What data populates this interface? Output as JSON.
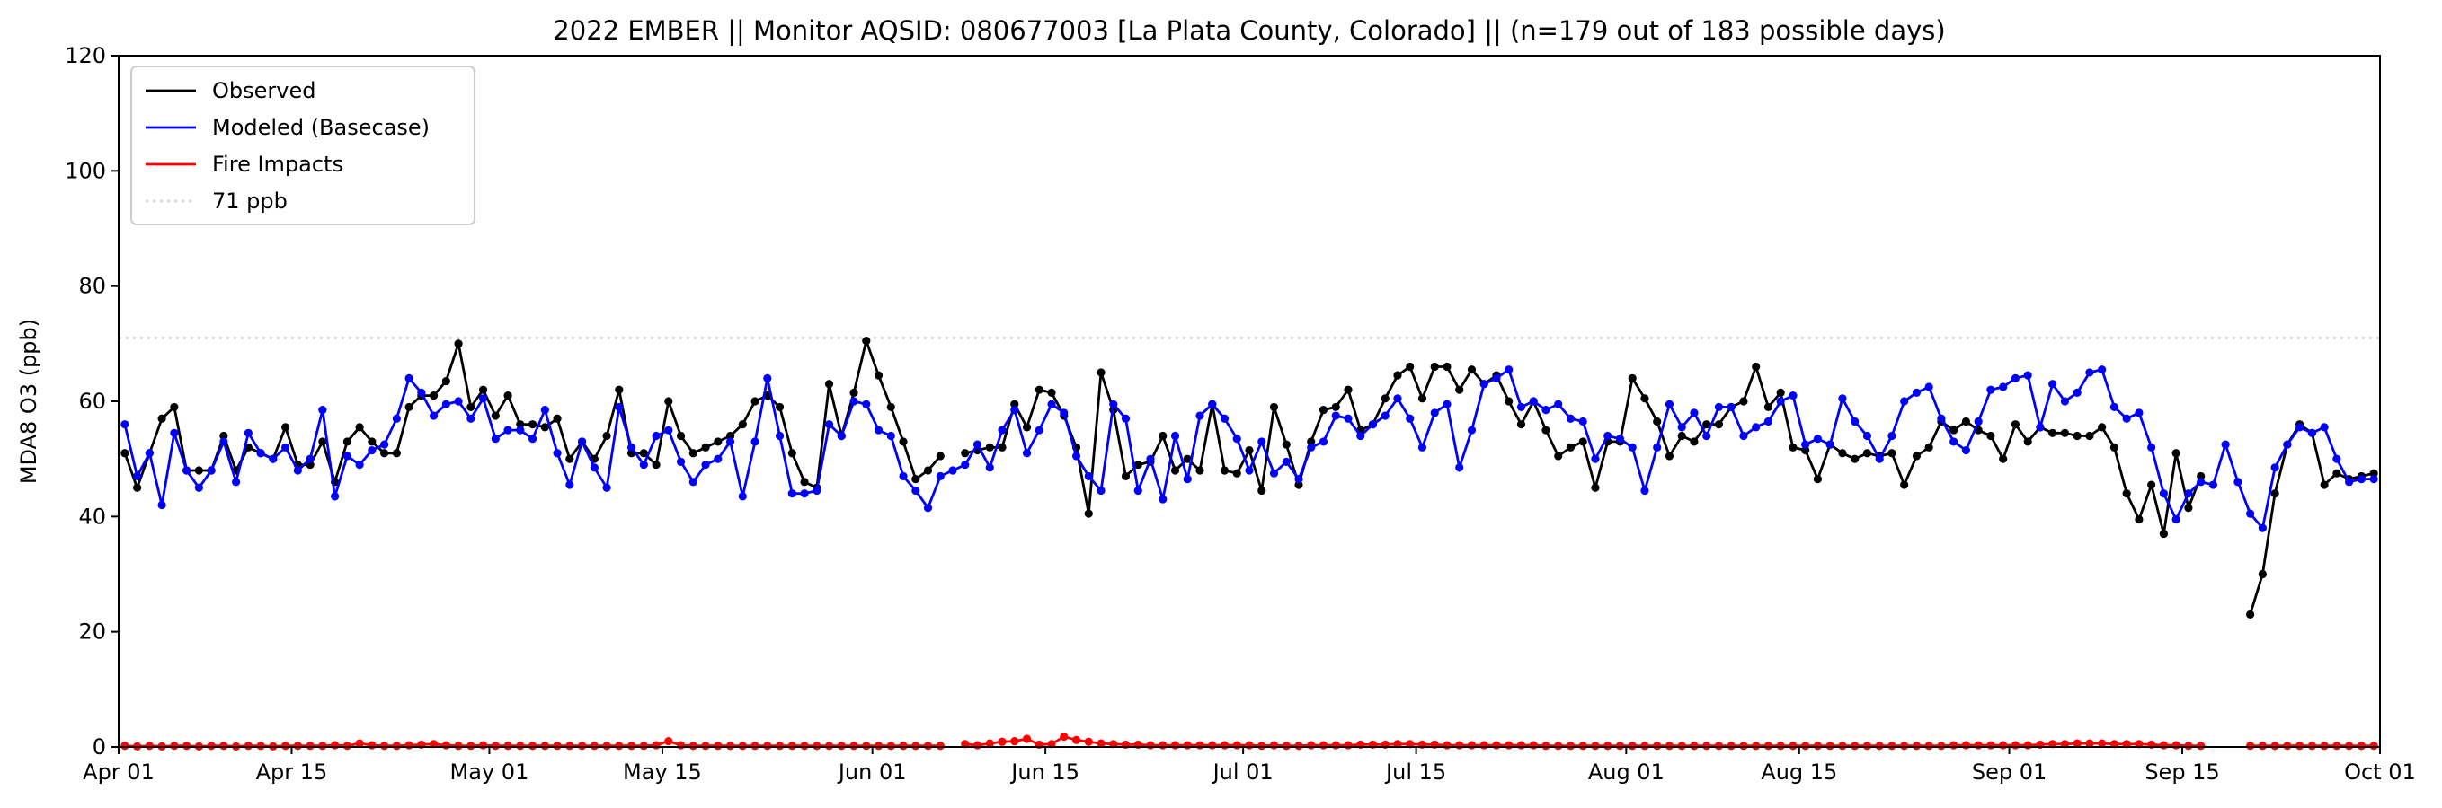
{
  "chart_data": {
    "type": "line",
    "title": "2022 EMBER || Monitor AQSID: 080677003 [La Plata County, Colorado] || (n=179 out of 183 possible days)",
    "xlabel": "",
    "ylabel": "MDA8 O3 (ppb)",
    "ylim": [
      0,
      120
    ],
    "yticks": [
      0,
      20,
      40,
      60,
      80,
      100,
      120
    ],
    "x_start": "2022-04-01",
    "x_days": 183,
    "xticks": [
      {
        "day": 0,
        "label": "Apr 01"
      },
      {
        "day": 14,
        "label": "Apr 15"
      },
      {
        "day": 30,
        "label": "May 01"
      },
      {
        "day": 44,
        "label": "May 15"
      },
      {
        "day": 61,
        "label": "Jun 01"
      },
      {
        "day": 75,
        "label": "Jun 15"
      },
      {
        "day": 91,
        "label": "Jul 01"
      },
      {
        "day": 105,
        "label": "Jul 15"
      },
      {
        "day": 122,
        "label": "Aug 01"
      },
      {
        "day": 136,
        "label": "Aug 15"
      },
      {
        "day": 153,
        "label": "Sep 01"
      },
      {
        "day": 167,
        "label": "Sep 15"
      },
      {
        "day": 183,
        "label": "Oct 01"
      }
    ],
    "grid": false,
    "legend_position": "top-left",
    "reference_line": {
      "value": 71,
      "label": "71 ppb",
      "color": "#d3d3d3"
    },
    "series": [
      {
        "name": "Observed",
        "color": "#000000",
        "values": [
          51,
          45,
          51,
          57,
          59,
          48,
          48,
          48,
          54,
          48,
          52,
          51,
          50,
          55.5,
          49,
          49,
          53,
          46,
          53,
          55.5,
          53,
          51,
          51,
          59,
          61,
          61,
          63.5,
          70,
          59,
          62,
          57.5,
          61,
          56,
          56,
          55.5,
          57,
          50,
          53,
          50,
          54,
          62,
          51,
          51,
          49,
          60,
          54,
          51,
          52,
          53,
          54,
          56,
          60,
          61,
          59,
          51,
          46,
          45,
          63,
          54,
          61.5,
          70.5,
          64.5,
          59,
          53,
          46.5,
          48,
          50.5,
          null,
          51,
          51.5,
          52,
          52,
          59.5,
          55.5,
          62,
          61.5,
          57.5,
          52,
          40.5,
          65,
          58.5,
          47,
          49,
          49.5,
          54,
          48,
          50,
          48,
          59.5,
          48,
          47.5,
          51.5,
          44.5,
          59,
          52.5,
          45.5,
          53,
          58.5,
          59,
          62,
          55,
          56,
          60.5,
          64.5,
          66,
          60.5,
          66,
          66,
          62,
          65.5,
          63,
          64.5,
          60,
          56,
          60,
          55,
          50.5,
          52,
          53,
          45,
          53,
          53,
          64,
          60.5,
          56.5,
          50.5,
          54,
          53,
          56,
          56,
          59,
          60,
          66,
          59,
          61.5,
          52,
          51.5,
          46.5,
          52.5,
          51,
          50,
          51,
          50.5,
          51,
          45.5,
          50.5,
          52,
          56.5,
          55,
          56.5,
          55,
          54,
          50,
          56,
          53,
          55.5,
          54.5,
          54.5,
          54,
          54,
          55.5,
          52,
          44,
          39.5,
          45.5,
          37,
          51,
          41.5,
          47,
          null,
          null,
          null,
          23,
          30,
          44,
          52.5,
          56,
          54.5,
          45.5,
          47.5,
          46.5,
          47,
          47.5
        ]
      },
      {
        "name": "Modeled (Basecase)",
        "color": "#0000ff",
        "values": [
          56,
          47,
          51,
          42,
          54.5,
          48,
          45,
          48,
          53,
          46,
          54.5,
          51,
          50,
          52,
          48,
          50,
          58.5,
          43.5,
          50.5,
          49,
          51.5,
          52.5,
          57,
          64,
          61.5,
          57.5,
          59.5,
          60,
          57,
          60.5,
          53.5,
          55,
          55,
          53.5,
          58.5,
          51,
          45.5,
          53,
          48.5,
          45,
          59,
          52,
          49,
          54,
          55,
          49.5,
          46,
          49,
          50,
          53,
          43.5,
          53,
          64,
          54,
          44,
          44,
          44.5,
          56,
          54,
          60,
          59.5,
          55,
          54,
          47,
          44.5,
          41.5,
          47,
          48,
          49,
          52.5,
          48.5,
          55,
          58.5,
          51,
          55,
          59.5,
          58,
          50.5,
          47,
          44.5,
          59.5,
          57,
          44.5,
          50,
          43,
          54,
          46.5,
          57.5,
          59.5,
          57,
          53.5,
          48,
          53,
          47.5,
          49.5,
          46.5,
          52,
          53,
          57.5,
          57,
          54,
          56,
          57.5,
          60.5,
          57,
          52,
          58,
          59.5,
          48.5,
          55,
          63,
          64,
          65.5,
          59,
          60,
          58.5,
          59.5,
          57,
          56.5,
          50,
          54,
          53.5,
          52,
          44.5,
          52,
          59.5,
          55.5,
          58,
          54,
          59,
          59,
          54,
          55.5,
          56.5,
          60,
          61,
          52.5,
          53.5,
          52.5,
          60.5,
          56.5,
          54,
          50,
          54,
          60,
          61.5,
          62.5,
          57,
          53,
          51.5,
          56.5,
          62,
          62.5,
          64,
          64.5,
          55.5,
          63,
          60,
          61.5,
          65,
          65.5,
          59,
          57,
          58,
          52,
          44,
          39.5,
          44,
          46,
          45.5,
          52.5,
          46,
          40.5,
          38,
          48.5,
          52.5,
          55.5,
          54.5,
          55.5,
          50,
          46,
          46.5,
          46.5
        ]
      },
      {
        "name": "Fire Impacts",
        "color": "#ff0000",
        "values": [
          0.2,
          0.1,
          0.2,
          0.1,
          0.2,
          0.2,
          0.1,
          0.2,
          0.2,
          0.1,
          0.2,
          0.2,
          0.1,
          0.2,
          0.2,
          0.2,
          0.2,
          0.3,
          0.2,
          0.6,
          0.3,
          0.2,
          0.2,
          0.3,
          0.4,
          0.5,
          0.3,
          0.2,
          0.2,
          0.3,
          0.2,
          0.2,
          0.2,
          0.2,
          0.2,
          0.2,
          0.2,
          0.2,
          0.2,
          0.2,
          0.2,
          0.2,
          0.2,
          0.3,
          1.0,
          0.3,
          0.2,
          0.2,
          0.2,
          0.2,
          0.2,
          0.2,
          0.2,
          0.2,
          0.2,
          0.2,
          0.2,
          0.2,
          0.2,
          0.2,
          0.2,
          0.2,
          0.2,
          0.2,
          0.2,
          0.2,
          0.2,
          null,
          0.5,
          0.3,
          0.6,
          0.9,
          1.0,
          1.4,
          0.4,
          0.5,
          1.8,
          1.2,
          0.9,
          0.6,
          0.5,
          0.4,
          0.4,
          0.3,
          0.3,
          0.3,
          0.3,
          0.3,
          0.3,
          0.3,
          0.3,
          0.3,
          0.2,
          0.3,
          0.2,
          0.2,
          0.3,
          0.3,
          0.3,
          0.3,
          0.4,
          0.4,
          0.4,
          0.5,
          0.5,
          0.4,
          0.4,
          0.3,
          0.3,
          0.3,
          0.3,
          0.3,
          0.3,
          0.3,
          0.3,
          0.2,
          0.2,
          0.2,
          0.2,
          0.2,
          0.2,
          0.2,
          0.2,
          0.2,
          0.2,
          0.2,
          0.2,
          0.2,
          0.2,
          0.2,
          0.2,
          0.2,
          0.2,
          0.2,
          0.2,
          0.2,
          0.2,
          0.2,
          0.2,
          0.2,
          0.2,
          0.2,
          0.2,
          0.2,
          0.2,
          0.2,
          0.2,
          0.2,
          0.3,
          0.3,
          0.3,
          0.3,
          0.3,
          0.3,
          0.3,
          0.4,
          0.5,
          0.5,
          0.6,
          0.6,
          0.6,
          0.5,
          0.5,
          0.5,
          0.4,
          0.3,
          0.3,
          0.2,
          0.2,
          null,
          null,
          null,
          0.2,
          0.2,
          0.2,
          0.2,
          0.2,
          0.2,
          0.2,
          0.2,
          0.2,
          0.2,
          0.2
        ]
      }
    ]
  }
}
